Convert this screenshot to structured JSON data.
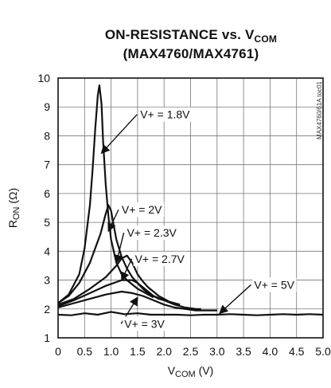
{
  "chart_data": {
    "type": "line",
    "title_main": "ON-RESISTANCE vs. V",
    "title_sub": "COM",
    "subtitle": "(MAX4760/MAX4761)",
    "ylabel_main": "R",
    "ylabel_sub": "ON",
    "ylabel_unit": " (Ω)",
    "xlabel_main": "V",
    "xlabel_sub": "COM",
    "xlabel_unit": " (V)",
    "watermark": "MAX4760/61A toc01",
    "xlim": [
      0,
      5.0
    ],
    "ylim": [
      1,
      10
    ],
    "xticks": [
      "0",
      "0.5",
      "1.0",
      "1.5",
      "2.0",
      "2.5",
      "3.0",
      "3.5",
      "4.0",
      "4.5",
      "5.0"
    ],
    "yticks": [
      "1",
      "2",
      "3",
      "4",
      "5",
      "6",
      "7",
      "8",
      "9",
      "10"
    ],
    "grid": true,
    "series": [
      {
        "name": "V+ = 1.8V",
        "x": [
          0,
          0.2,
          0.4,
          0.5,
          0.6,
          0.65,
          0.7,
          0.75,
          0.78,
          0.82,
          0.85,
          0.9,
          0.95,
          1.0,
          1.1,
          1.2,
          1.3,
          1.4,
          1.5,
          1.6,
          1.7,
          1.8
        ],
        "y": [
          2.2,
          2.5,
          3.2,
          4.1,
          5.6,
          6.8,
          8.2,
          9.4,
          9.75,
          9.1,
          7.8,
          6.3,
          5.2,
          4.4,
          3.6,
          3.2,
          3.0,
          2.85,
          2.7,
          2.6,
          2.5,
          2.4
        ]
      },
      {
        "name": "V+ = 2V",
        "x": [
          0,
          0.2,
          0.4,
          0.6,
          0.8,
          0.9,
          0.95,
          1.0,
          1.05,
          1.1,
          1.2,
          1.3,
          1.4,
          1.5,
          1.6,
          1.7,
          1.8,
          1.9,
          2.0
        ],
        "y": [
          2.2,
          2.45,
          2.9,
          3.6,
          4.6,
          5.3,
          5.6,
          5.4,
          4.9,
          4.4,
          3.8,
          3.4,
          3.1,
          2.9,
          2.7,
          2.55,
          2.45,
          2.35,
          2.3
        ]
      },
      {
        "name": "V+ = 2.3V",
        "x": [
          0,
          0.3,
          0.6,
          0.9,
          1.1,
          1.2,
          1.3,
          1.4,
          1.5,
          1.6,
          1.7,
          1.8,
          1.9,
          2.0,
          2.1,
          2.2,
          2.3
        ],
        "y": [
          2.15,
          2.35,
          2.7,
          3.1,
          3.5,
          3.75,
          3.85,
          3.6,
          3.2,
          2.95,
          2.75,
          2.6,
          2.45,
          2.35,
          2.25,
          2.2,
          2.15
        ]
      },
      {
        "name": "V+ = 2.7V",
        "x": [
          0,
          0.3,
          0.6,
          0.9,
          1.2,
          1.4,
          1.5,
          1.6,
          1.7,
          1.8,
          2.0,
          2.2,
          2.4,
          2.6,
          2.7
        ],
        "y": [
          2.1,
          2.3,
          2.55,
          2.8,
          3.0,
          3.0,
          2.9,
          2.75,
          2.6,
          2.45,
          2.3,
          2.15,
          2.05,
          2.0,
          2.0
        ]
      },
      {
        "name": "V+ = 3V",
        "x": [
          0,
          0.3,
          0.6,
          0.9,
          1.2,
          1.4,
          1.6,
          1.8,
          2.0,
          2.2,
          2.4,
          2.6,
          2.8,
          3.0
        ],
        "y": [
          2.05,
          2.2,
          2.35,
          2.5,
          2.6,
          2.55,
          2.45,
          2.3,
          2.15,
          2.05,
          2.0,
          1.95,
          1.95,
          1.95
        ]
      },
      {
        "name": "V+ = 5V",
        "x": [
          0,
          0.25,
          0.5,
          0.75,
          1.0,
          1.25,
          1.5,
          1.75,
          2.0,
          2.25,
          2.5,
          2.75,
          3.0,
          3.25,
          3.5,
          3.75,
          4.0,
          4.25,
          4.5,
          4.75,
          5.0
        ],
        "y": [
          1.8,
          1.78,
          1.85,
          1.8,
          1.9,
          1.82,
          1.85,
          1.8,
          1.8,
          1.8,
          1.78,
          1.8,
          1.8,
          1.82,
          1.8,
          1.78,
          1.8,
          1.82,
          1.8,
          1.82,
          1.8
        ]
      }
    ],
    "annotations": [
      {
        "text": "V+ = 1.8V",
        "series": 0,
        "x": 1.55,
        "y": 8.6,
        "ax": 0.82,
        "ay": 7.4
      },
      {
        "text": "V+ = 2V",
        "series": 1,
        "x": 1.2,
        "y": 5.3,
        "ax": 0.95,
        "ay": 4.7
      },
      {
        "text": "V+ = 2.3V",
        "series": 2,
        "x": 1.3,
        "y": 4.5,
        "ax": 1.1,
        "ay": 3.6
      },
      {
        "text": "V+ = 2.7V",
        "series": 3,
        "x": 1.45,
        "y": 3.6,
        "ax": 1.2,
        "ay": 3.0
      },
      {
        "text": "V+ = 3V",
        "series": 4,
        "x": 1.25,
        "y": 1.35,
        "ax": 1.5,
        "ay": 2.4
      },
      {
        "text": "V+ = 5V",
        "series": 5,
        "x": 3.7,
        "y": 2.7,
        "ax": 3.05,
        "ay": 1.85
      }
    ]
  }
}
